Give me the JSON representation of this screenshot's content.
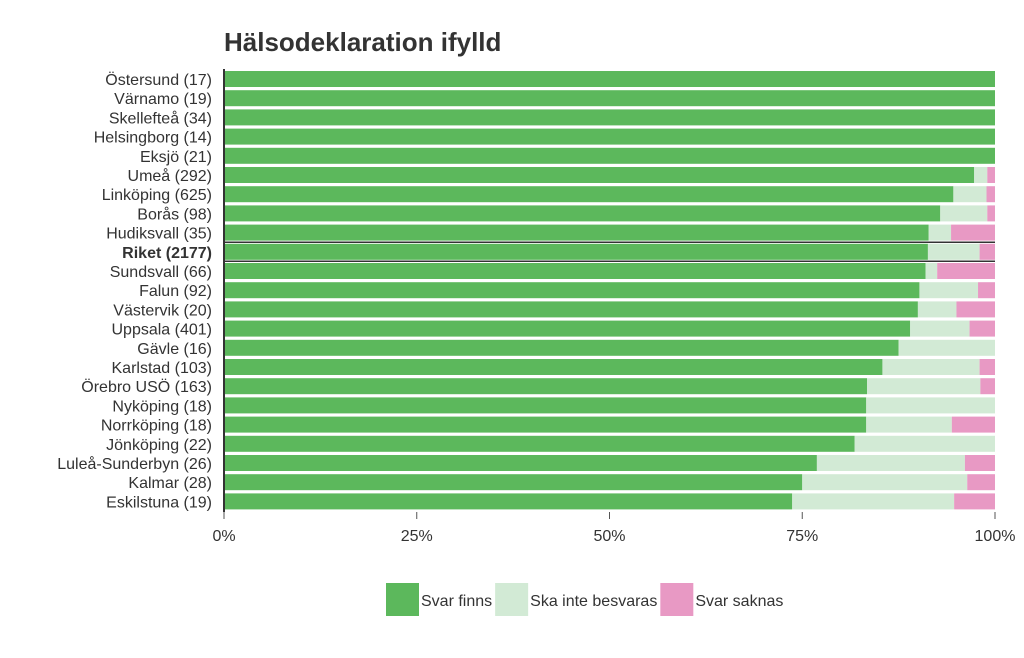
{
  "chart_data": {
    "type": "bar",
    "orientation": "horizontal",
    "stacked": true,
    "title": "Hälsodeklaration ifylld",
    "xlim": [
      0,
      100
    ],
    "xticks": [
      "0%",
      "25%",
      "50%",
      "75%",
      "100%"
    ],
    "legend_position": "bottom",
    "highlight_category": "Riket (2177)",
    "categories": [
      "Östersund (17)",
      "Värnamo (19)",
      "Skellefteå (34)",
      "Helsingborg (14)",
      "Eksjö (21)",
      "Umeå (292)",
      "Linköping (625)",
      "Borås (98)",
      "Hudiksvall (35)",
      "Riket (2177)",
      "Sundsvall (66)",
      "Falun (92)",
      "Västervik (20)",
      "Uppsala (401)",
      "Gävle (16)",
      "Karlstad (103)",
      "Örebro USÖ (163)",
      "Nyköping (18)",
      "Norrköping (18)",
      "Jönköping (22)",
      "Luleå-Sunderbyn (26)",
      "Kalmar (28)",
      "Eskilstuna (19)"
    ],
    "series": [
      {
        "name": "Svar finns",
        "color": "#5cb85c",
        "values": [
          100,
          100,
          100,
          100,
          100,
          97.3,
          94.6,
          92.9,
          91.4,
          91.3,
          91.0,
          90.2,
          90.0,
          89.0,
          87.5,
          85.4,
          83.4,
          83.3,
          83.3,
          81.8,
          76.9,
          75.0,
          73.7
        ]
      },
      {
        "name": "Ska inte besvaras",
        "color": "#d2ead5",
        "values": [
          0,
          0,
          0,
          0,
          0,
          1.7,
          4.3,
          6.1,
          2.9,
          6.7,
          1.5,
          7.6,
          5.0,
          7.7,
          12.5,
          12.6,
          14.7,
          16.7,
          11.1,
          18.2,
          19.2,
          21.4,
          21.0
        ]
      },
      {
        "name": "Svar saknas",
        "color": "#e899c4",
        "values": [
          0,
          0,
          0,
          0,
          0,
          1.0,
          1.1,
          1.0,
          5.7,
          2.0,
          7.5,
          2.2,
          5.0,
          3.3,
          0,
          2.0,
          1.9,
          0,
          5.6,
          0,
          3.9,
          3.6,
          5.3
        ]
      }
    ]
  }
}
